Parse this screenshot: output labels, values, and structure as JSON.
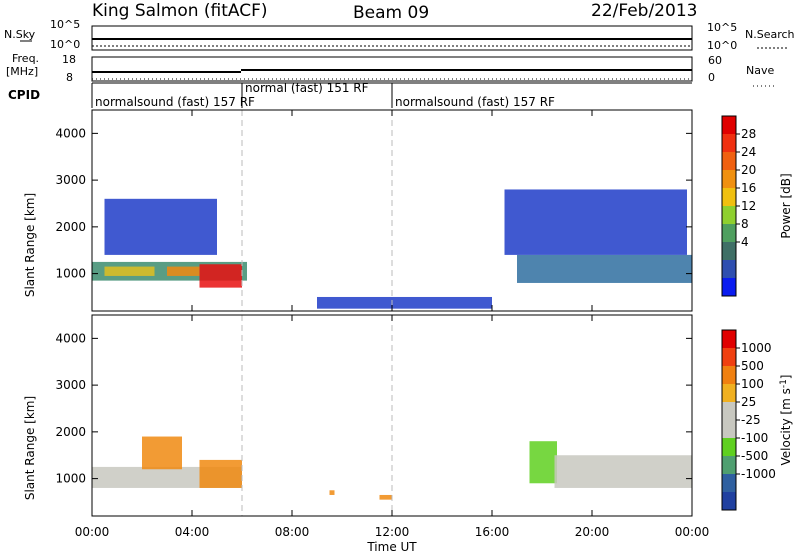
{
  "header": {
    "station": "King Salmon (fitACF)",
    "beam": "Beam 09",
    "date": "22/Feb/2013"
  },
  "strips": {
    "nsky_label": "N.Sky",
    "nsearch_label": "N.Search",
    "noise_ticks_left": [
      "10^5",
      "10^0"
    ],
    "noise_ticks_right": [
      "10^5",
      "10^0"
    ],
    "freq_label_1": "Freq.",
    "freq_label_2": "[MHz]",
    "freq_ticks": [
      "18",
      "8"
    ],
    "nave_label": "Nave",
    "nave_ticks": [
      "60",
      "0"
    ],
    "cpid_label": "CPID",
    "cpid_segments": [
      {
        "text": "normalsound (fast) 157 RF",
        "start_h": 0,
        "end_h": 6
      },
      {
        "text": "normal (fast) 151 RF",
        "start_h": 6,
        "end_h": 12
      },
      {
        "text": "normalsound (fast) 157 RF",
        "start_h": 12,
        "end_h": 24
      }
    ]
  },
  "axes": {
    "xlabel": "Time UT",
    "x_tick_labels": [
      "00:00",
      "04:00",
      "08:00",
      "12:00",
      "16:00",
      "20:00",
      "00:00"
    ],
    "ylabel": "Slant Range [km]",
    "y_tick_labels": [
      "1000",
      "2000",
      "3000",
      "4000"
    ]
  },
  "colorbars": {
    "power": {
      "label": "Power [dB]",
      "ticks": [
        "28",
        "24",
        "20",
        "16",
        "12",
        "8",
        "4"
      ],
      "colors": [
        "#0a1cf0",
        "#2f4fb0",
        "#3f6f66",
        "#4f9f5f",
        "#8fd02f",
        "#f0c010",
        "#f09010",
        "#f06010",
        "#f03010",
        "#e00000"
      ]
    },
    "velocity": {
      "label": "Velocity [m s",
      "label_sup": "-1",
      "label_end": "]",
      "ticks": [
        "1000",
        "500",
        "100",
        "25",
        "-25",
        "-100",
        "-500",
        "-1000"
      ],
      "colors": [
        "#2040a0",
        "#2f60a0",
        "#4f9f70",
        "#5fd020",
        "#c8c8c0",
        "#c8c8c0",
        "#f0b020",
        "#f08010",
        "#f04010",
        "#e00000"
      ]
    }
  },
  "chart_data": [
    {
      "type": "heatmap",
      "title": "Power",
      "x_unit": "hours UT",
      "xlim": [
        0,
        24
      ],
      "ylim": [
        200,
        4500
      ],
      "cells": [
        {
          "t": 0.0,
          "t2": 6.2,
          "r": 850,
          "r2": 1250,
          "v": "green-blue"
        },
        {
          "t": 0.5,
          "t2": 2.5,
          "r": 950,
          "r2": 1150,
          "v": "yellow"
        },
        {
          "t": 4.3,
          "t2": 6.0,
          "r": 700,
          "r2": 1200,
          "v": "red"
        },
        {
          "t": 3.0,
          "t2": 4.3,
          "r": 950,
          "r2": 1150,
          "v": "orange"
        },
        {
          "t": 0.5,
          "t2": 5.0,
          "r": 1400,
          "r2": 2600,
          "v": "blue"
        },
        {
          "t": 17.0,
          "t2": 24.0,
          "r": 800,
          "r2": 1400,
          "v": "blue-green"
        },
        {
          "t": 16.5,
          "t2": 23.8,
          "r": 1400,
          "r2": 2800,
          "v": "blue"
        },
        {
          "t": 9.0,
          "t2": 16.0,
          "r": 250,
          "r2": 500,
          "v": "blue"
        }
      ]
    },
    {
      "type": "heatmap",
      "title": "Velocity",
      "x_unit": "hours UT",
      "xlim": [
        0,
        24
      ],
      "ylim": [
        200,
        4500
      ],
      "cells": [
        {
          "t": 0.0,
          "t2": 6.0,
          "r": 800,
          "r2": 1250,
          "v": "grey"
        },
        {
          "t": 2.0,
          "t2": 3.6,
          "r": 1200,
          "r2": 1900,
          "v": "orange"
        },
        {
          "t": 4.3,
          "t2": 6.0,
          "r": 800,
          "r2": 1400,
          "v": "orange"
        },
        {
          "t": 17.5,
          "t2": 18.6,
          "r": 900,
          "r2": 1800,
          "v": "green"
        },
        {
          "t": 18.5,
          "t2": 24.0,
          "r": 800,
          "r2": 1500,
          "v": "grey"
        },
        {
          "t": 9.5,
          "t2": 9.7,
          "r": 650,
          "r2": 750,
          "v": "orange"
        },
        {
          "t": 11.5,
          "t2": 12.0,
          "r": 550,
          "r2": 650,
          "v": "orange"
        }
      ]
    }
  ]
}
